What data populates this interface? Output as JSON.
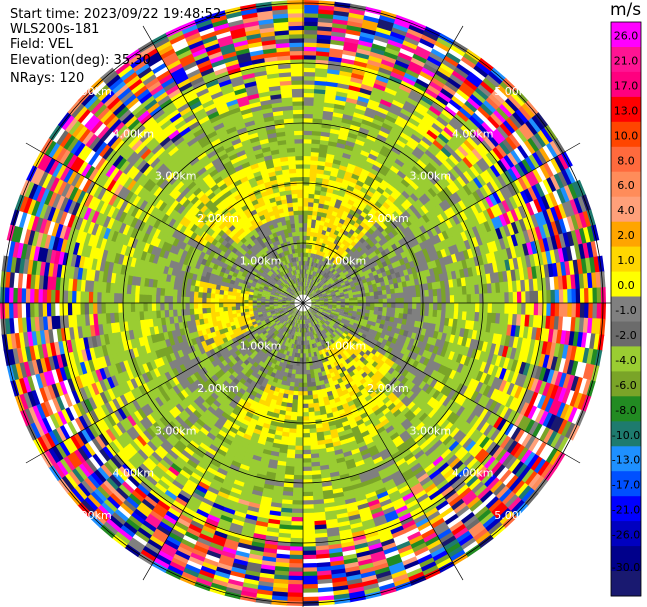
{
  "header": {
    "start_time": "Start time: 2023/09/22 19:48:52",
    "instrument": "WLS200s-181",
    "field": "Field: VEL",
    "elevation": "Elevation(deg): 35.30",
    "nrays": "NRays: 120"
  },
  "colorbar": {
    "unit": "m/s",
    "ticks": [
      "26.0",
      "21.0",
      "17.0",
      "13.0",
      "10.0",
      "8.0",
      "6.0",
      "4.0",
      "2.0",
      "1.0",
      "0.0",
      "-1.0",
      "-2.0",
      "-4.0",
      "-6.0",
      "-8.0",
      "-10.0",
      "-13.0",
      "-17.0",
      "-21.0",
      "-26.0",
      "-30.0"
    ],
    "colors": [
      "#ff00ff",
      "#ff1493",
      "#ff007f",
      "#ff0000",
      "#ff4500",
      "#ff6a3d",
      "#ff8c5a",
      "#ffa07a",
      "#ffa500",
      "#ffd700",
      "#ffff00",
      "#808080",
      "#6b6b6b",
      "#9acd32",
      "#7aa428",
      "#228b22",
      "#1e7b6e",
      "#1e90ff",
      "#0050ff",
      "#0000ff",
      "#0000c0",
      "#00008b",
      "#191970"
    ]
  },
  "chart_data": {
    "type": "heatmap",
    "title": "",
    "field": "VEL",
    "units": "m/s",
    "projection": "PPI polar",
    "n_rays": 120,
    "elevation_deg": 35.3,
    "range_rings_km": [
      1.0,
      2.0,
      3.0,
      4.0,
      5.0
    ],
    "ring_labels": [
      "1.00km",
      "2.00km",
      "3.00km",
      "4.00km",
      "5.00km"
    ],
    "value_range": [
      -30.0,
      26.0
    ],
    "zones": [
      {
        "range_km": [
          0,
          1.8
        ],
        "description": "mostly 0.0 to -1.0 (gray) with -2.0 (light green) patches"
      },
      {
        "range_km": [
          1.0,
          2.2
        ],
        "description": "2.0 to 4.0 (yellow) patches"
      },
      {
        "range_km": [
          2.2,
          4.0
        ],
        "description": "-2.0 to 2.0 mixed (green/yellow/gray)"
      },
      {
        "range_km": [
          4.0,
          5.5
        ],
        "description": "noisy random velocities -30.0 to 26.0"
      }
    ]
  }
}
